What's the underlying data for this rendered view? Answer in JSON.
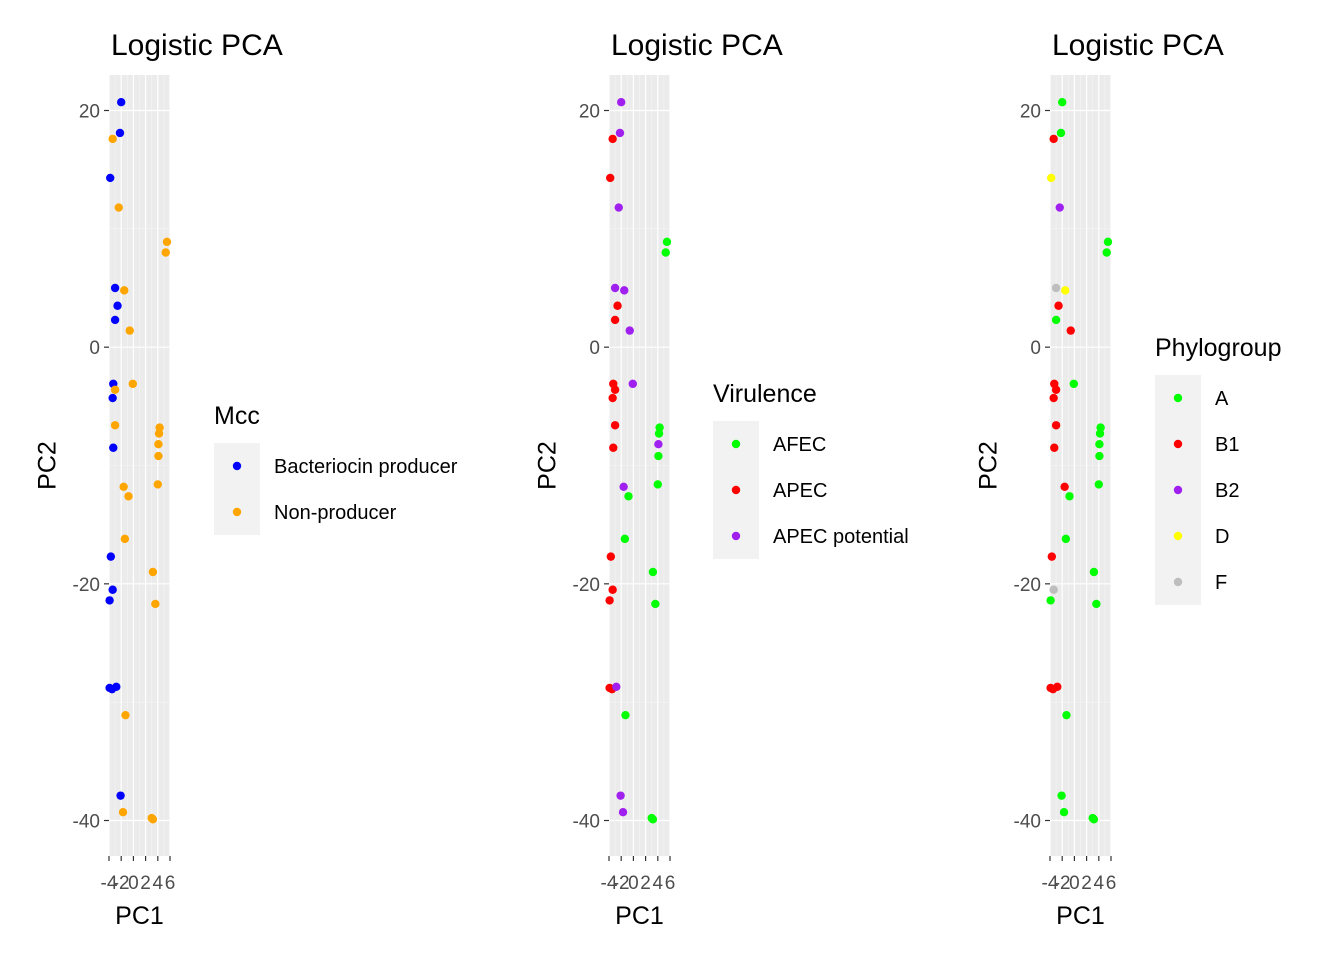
{
  "chart_data": [
    {
      "type": "scatter",
      "title": "Logistic PCA",
      "xlabel": "PC1",
      "ylabel": "PC2",
      "xlim": [
        -4,
        6
      ],
      "ylim": [
        -43,
        23
      ],
      "x_ticks": [
        -4,
        -2,
        0,
        2,
        4,
        6
      ],
      "x_tick_labels": [
        "-4",
        "-2",
        "0",
        "2",
        "4",
        "6"
      ],
      "y_ticks": [
        -40,
        -20,
        0,
        20
      ],
      "y_tick_labels": [
        "-40",
        "-20",
        "0",
        "20"
      ],
      "grid": true,
      "legend_title": "Mcc",
      "legend_position": "right",
      "series": [
        {
          "name": "Bacteriocin producer",
          "color": "#0000FF",
          "points": [
            [
              -2.0,
              20.7
            ],
            [
              -2.2,
              18.1
            ],
            [
              -3.8,
              14.3
            ],
            [
              -3.0,
              5.0
            ],
            [
              -2.6,
              3.5
            ],
            [
              -3.0,
              2.3
            ],
            [
              -3.3,
              -3.1
            ],
            [
              -3.4,
              -4.3
            ],
            [
              -3.3,
              -8.5
            ],
            [
              -3.7,
              -17.7
            ],
            [
              -3.4,
              -20.5
            ],
            [
              -3.9,
              -21.4
            ],
            [
              -3.9,
              -28.8
            ],
            [
              -3.5,
              -28.9
            ],
            [
              -2.8,
              -28.7
            ],
            [
              -2.1,
              -37.9
            ]
          ]
        },
        {
          "name": "Non-producer",
          "color": "#FFA500",
          "points": [
            [
              -3.4,
              17.6
            ],
            [
              -2.4,
              11.8
            ],
            [
              5.5,
              8.9
            ],
            [
              5.3,
              8.0
            ],
            [
              -1.5,
              4.8
            ],
            [
              -0.6,
              1.4
            ],
            [
              -0.1,
              -3.1
            ],
            [
              -3.0,
              -3.6
            ],
            [
              -3.0,
              -6.6
            ],
            [
              4.3,
              -6.8
            ],
            [
              4.2,
              -7.3
            ],
            [
              4.1,
              -8.2
            ],
            [
              4.1,
              -9.2
            ],
            [
              -1.6,
              -11.8
            ],
            [
              -0.8,
              -12.6
            ],
            [
              4.0,
              -11.6
            ],
            [
              -1.4,
              -16.2
            ],
            [
              3.2,
              -19.0
            ],
            [
              3.6,
              -21.7
            ],
            [
              -1.3,
              -31.1
            ],
            [
              -1.7,
              -39.3
            ],
            [
              3.0,
              -39.8
            ],
            [
              3.2,
              -39.9
            ]
          ]
        }
      ]
    },
    {
      "type": "scatter",
      "title": "Logistic PCA",
      "xlabel": "PC1",
      "ylabel": "PC2",
      "xlim": [
        -4,
        6
      ],
      "ylim": [
        -43,
        23
      ],
      "x_ticks": [
        -4,
        -2,
        0,
        2,
        4,
        6
      ],
      "x_tick_labels": [
        "-4",
        "-2",
        "0",
        "2",
        "4",
        "6"
      ],
      "y_ticks": [
        -40,
        -20,
        0,
        20
      ],
      "y_tick_labels": [
        "-40",
        "-20",
        "0",
        "20"
      ],
      "grid": true,
      "legend_title": "Virulence",
      "legend_position": "right",
      "series": [
        {
          "name": "AFEC",
          "color": "#00FF00",
          "points": [
            [
              5.5,
              8.9
            ],
            [
              5.3,
              8.0
            ],
            [
              4.3,
              -6.8
            ],
            [
              4.2,
              -7.3
            ],
            [
              4.1,
              -9.2
            ],
            [
              4.0,
              -11.6
            ],
            [
              -0.8,
              -12.6
            ],
            [
              -1.4,
              -16.2
            ],
            [
              3.2,
              -19.0
            ],
            [
              3.6,
              -21.7
            ],
            [
              -1.3,
              -31.1
            ],
            [
              3.0,
              -39.8
            ],
            [
              3.2,
              -39.9
            ]
          ]
        },
        {
          "name": "APEC",
          "color": "#FF0000",
          "points": [
            [
              -3.4,
              17.6
            ],
            [
              -3.8,
              14.3
            ],
            [
              -2.6,
              3.5
            ],
            [
              -3.0,
              2.3
            ],
            [
              -3.3,
              -3.1
            ],
            [
              -3.0,
              -3.6
            ],
            [
              -3.4,
              -4.3
            ],
            [
              -3.0,
              -6.6
            ],
            [
              -3.3,
              -8.5
            ],
            [
              -3.7,
              -17.7
            ],
            [
              -3.4,
              -20.5
            ],
            [
              -3.9,
              -21.4
            ],
            [
              -3.9,
              -28.8
            ],
            [
              -3.5,
              -28.9
            ]
          ]
        },
        {
          "name": "APEC potential",
          "color": "#A020F0",
          "points": [
            [
              -2.0,
              20.7
            ],
            [
              -2.2,
              18.1
            ],
            [
              -2.4,
              11.8
            ],
            [
              -3.0,
              5.0
            ],
            [
              -1.5,
              4.8
            ],
            [
              -0.6,
              1.4
            ],
            [
              -0.1,
              -3.1
            ],
            [
              4.1,
              -8.2
            ],
            [
              -1.6,
              -11.8
            ],
            [
              -2.8,
              -28.7
            ],
            [
              -2.1,
              -37.9
            ],
            [
              -1.7,
              -39.3
            ]
          ]
        }
      ]
    },
    {
      "type": "scatter",
      "title": "Logistic PCA",
      "xlabel": "PC1",
      "ylabel": "PC2",
      "xlim": [
        -4,
        6
      ],
      "ylim": [
        -43,
        23
      ],
      "x_ticks": [
        -4,
        -2,
        0,
        2,
        4,
        6
      ],
      "x_tick_labels": [
        "-4",
        "-2",
        "0",
        "2",
        "4",
        "6"
      ],
      "y_ticks": [
        -40,
        -20,
        0,
        20
      ],
      "y_tick_labels": [
        "-40",
        "-20",
        "0",
        "20"
      ],
      "grid": true,
      "legend_title": "Phylogroup",
      "legend_position": "right",
      "series": [
        {
          "name": "A",
          "color": "#00FF00",
          "points": [
            [
              -2.0,
              20.7
            ],
            [
              -2.2,
              18.1
            ],
            [
              5.5,
              8.9
            ],
            [
              5.3,
              8.0
            ],
            [
              -3.0,
              2.3
            ],
            [
              -0.1,
              -3.1
            ],
            [
              4.3,
              -6.8
            ],
            [
              4.2,
              -7.3
            ],
            [
              4.1,
              -8.2
            ],
            [
              4.1,
              -9.2
            ],
            [
              4.0,
              -11.6
            ],
            [
              -0.8,
              -12.6
            ],
            [
              -1.4,
              -16.2
            ],
            [
              3.2,
              -19.0
            ],
            [
              3.6,
              -21.7
            ],
            [
              -3.9,
              -21.4
            ],
            [
              -1.3,
              -31.1
            ],
            [
              -2.1,
              -37.9
            ],
            [
              -1.7,
              -39.3
            ],
            [
              3.0,
              -39.8
            ],
            [
              3.2,
              -39.9
            ]
          ]
        },
        {
          "name": "B1",
          "color": "#FF0000",
          "points": [
            [
              -3.4,
              17.6
            ],
            [
              -2.6,
              3.5
            ],
            [
              -0.6,
              1.4
            ],
            [
              -3.3,
              -3.1
            ],
            [
              -3.0,
              -3.6
            ],
            [
              -3.4,
              -4.3
            ],
            [
              -3.0,
              -6.6
            ],
            [
              -3.3,
              -8.5
            ],
            [
              -1.6,
              -11.8
            ],
            [
              -3.7,
              -17.7
            ],
            [
              -3.9,
              -28.8
            ],
            [
              -3.5,
              -28.9
            ],
            [
              -2.8,
              -28.7
            ]
          ]
        },
        {
          "name": "B2",
          "color": "#A020F0",
          "points": [
            [
              -2.4,
              11.8
            ]
          ]
        },
        {
          "name": "D",
          "color": "#FFFF00",
          "points": [
            [
              -3.8,
              14.3
            ],
            [
              -1.5,
              4.8
            ]
          ]
        },
        {
          "name": "F",
          "color": "#BEBEBE",
          "points": [
            [
              -3.0,
              5.0
            ],
            [
              -3.4,
              -20.5
            ]
          ]
        }
      ]
    }
  ]
}
